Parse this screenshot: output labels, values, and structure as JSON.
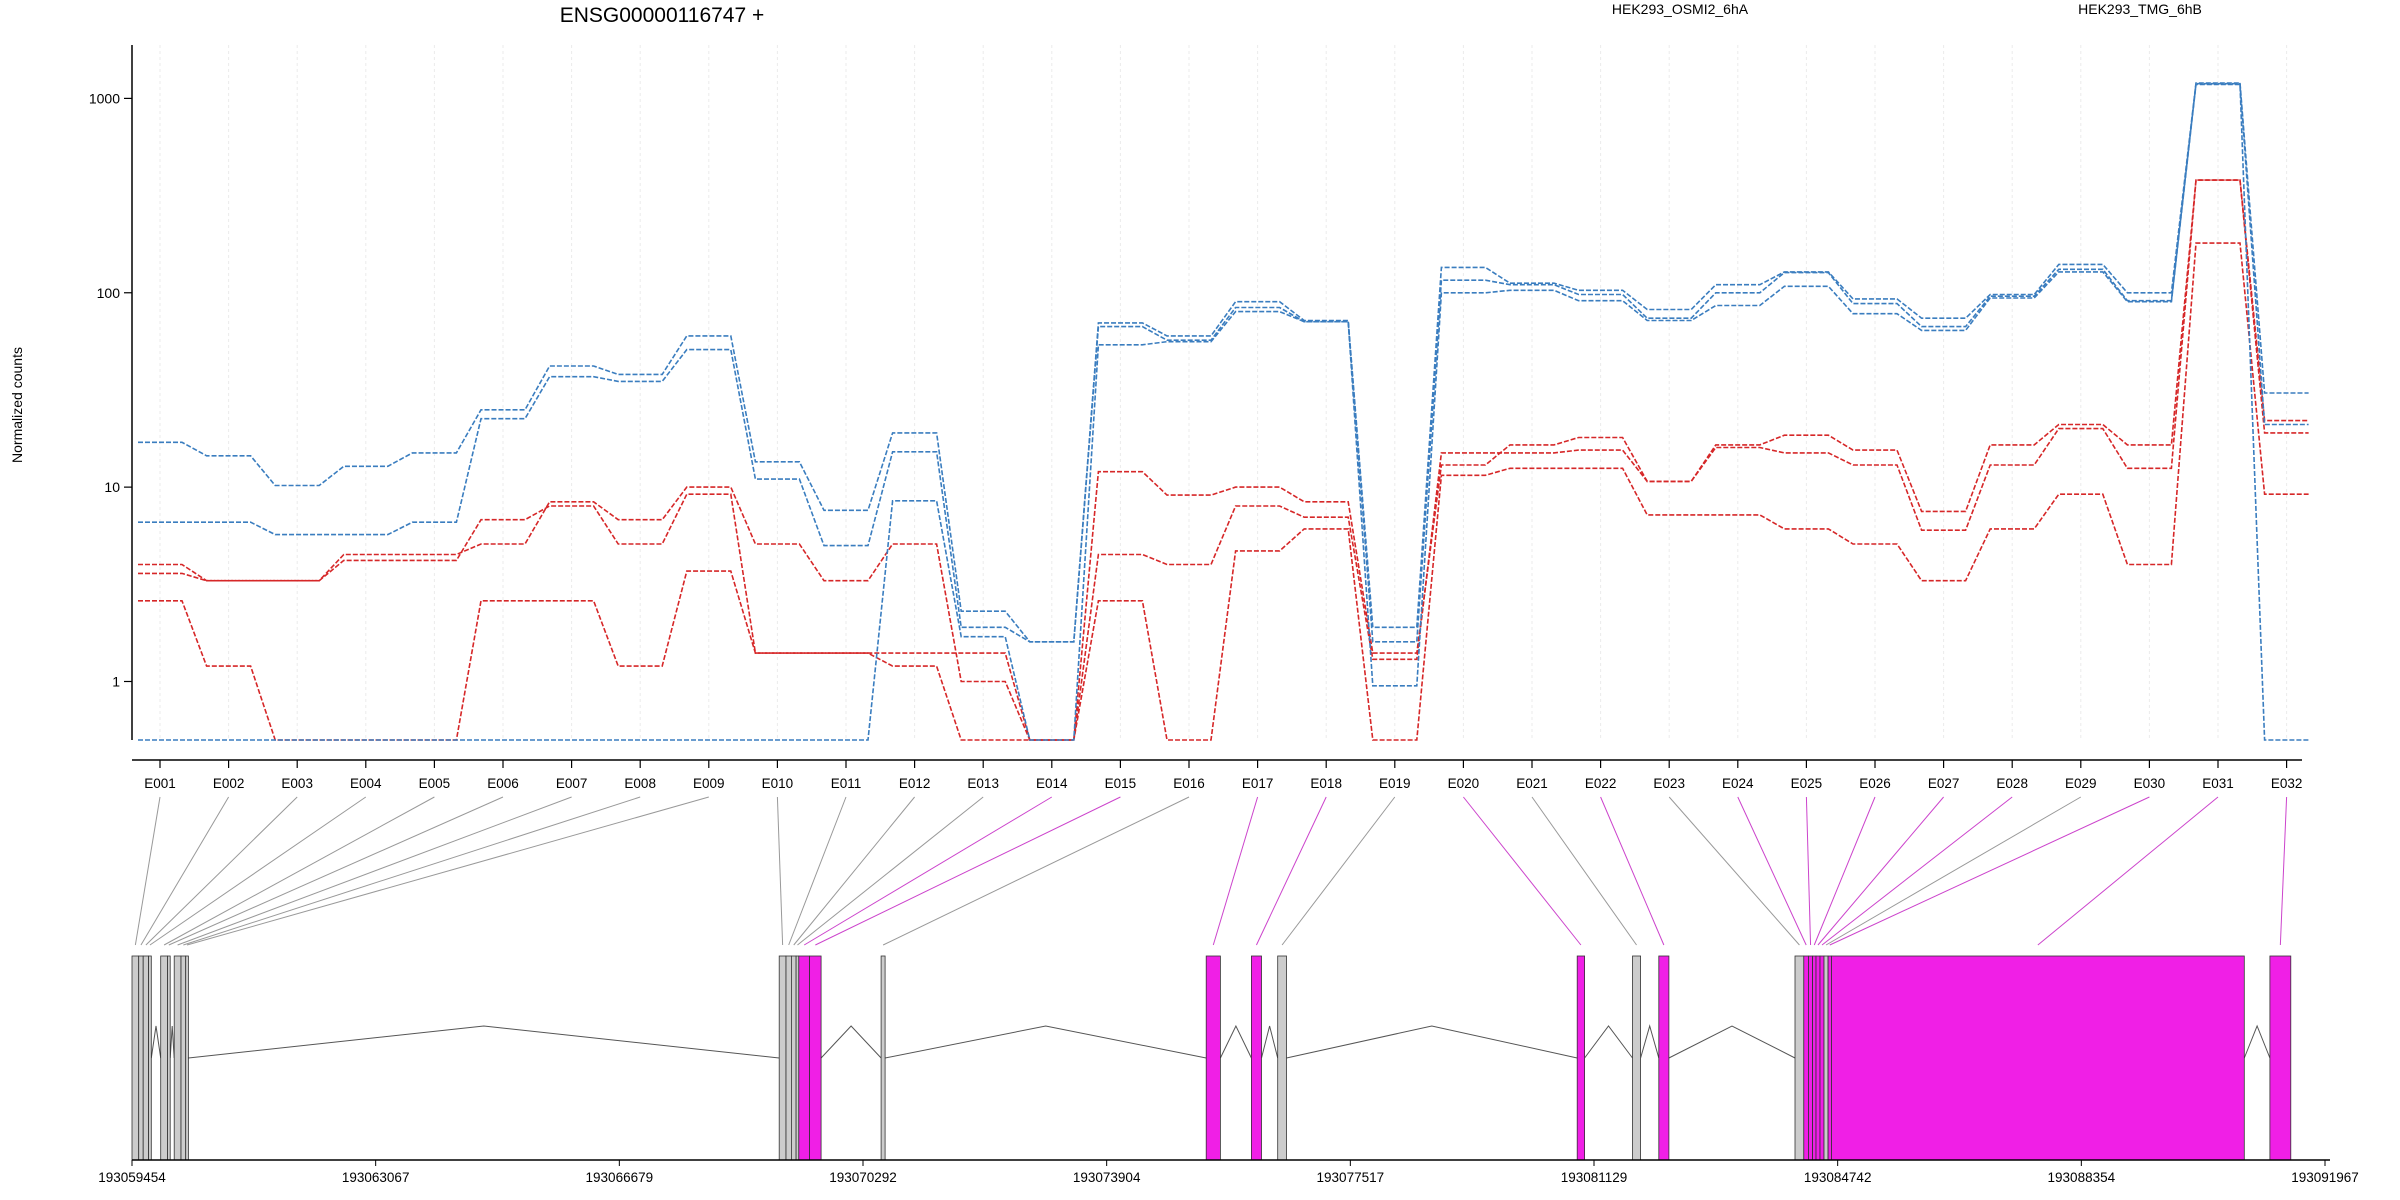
{
  "chart_data": {
    "type": "line",
    "title": "ENSG00000116747 +",
    "ylabel": "Normalized counts",
    "yscale": "log",
    "yticks": [
      "1",
      "10",
      "100",
      "1000"
    ],
    "ytick_values": [
      1,
      10,
      100,
      1000
    ],
    "ylim": [
      0.5,
      1400
    ],
    "legend": [
      {
        "label": "HEK293_OSMI2_6hA",
        "color": "#d62728"
      },
      {
        "label": "HEK293_TMG_6hB",
        "color": "#3a7dbf"
      }
    ],
    "categories": [
      "E001",
      "E002",
      "E003",
      "E004",
      "E005",
      "E006",
      "E007",
      "E008",
      "E009",
      "E010",
      "E011",
      "E012",
      "E013",
      "E014",
      "E015",
      "E016",
      "E017",
      "E018",
      "E019",
      "E020",
      "E021",
      "E022",
      "E023",
      "E024",
      "E025",
      "E026",
      "E027",
      "E028",
      "E029",
      "E030",
      "E031",
      "E032"
    ],
    "series": [
      {
        "group": "HEK293_OSMI2_6hA",
        "color": "#d62728",
        "values": [
          4.0,
          3.3,
          3.3,
          4.5,
          4.5,
          5.1,
          8.4,
          6.8,
          10.0,
          5.1,
          3.3,
          5.1,
          1.0,
          0.5,
          12.0,
          9.1,
          10.0,
          8.4,
          1.4,
          13.0,
          16.5,
          18.0,
          10.7,
          16.5,
          18.5,
          15.5,
          7.5,
          16.5,
          21.0,
          16.5,
          380,
          22.0
        ]
      },
      {
        "group": "HEK293_OSMI2_6hA",
        "color": "#d62728",
        "values": [
          3.6,
          3.3,
          3.3,
          4.2,
          4.2,
          6.8,
          8.0,
          5.1,
          9.2,
          1.4,
          1.4,
          1.4,
          1.4,
          0.5,
          4.5,
          4.0,
          8.0,
          7.0,
          1.3,
          15.0,
          15.0,
          15.5,
          10.7,
          16.0,
          15.0,
          13.0,
          6.0,
          13.0,
          20.0,
          12.5,
          380,
          19.0
        ]
      },
      {
        "group": "HEK293_OSMI2_6hA",
        "color": "#d62728",
        "values": [
          2.6,
          1.2,
          0.5,
          0.5,
          0.5,
          2.6,
          2.6,
          1.2,
          3.7,
          1.4,
          1.4,
          1.2,
          0.5,
          0.5,
          2.6,
          0.5,
          4.7,
          6.1,
          0.5,
          11.5,
          12.5,
          12.5,
          7.2,
          7.2,
          6.1,
          5.1,
          3.3,
          6.1,
          9.2,
          4.0,
          180,
          9.2
        ]
      },
      {
        "group": "HEK293_TMG_6hB",
        "color": "#3a7dbf",
        "values": [
          17.0,
          14.5,
          10.2,
          12.8,
          15.0,
          25.0,
          42.0,
          38.0,
          60.0,
          13.5,
          7.6,
          19.0,
          2.3,
          1.6,
          70.0,
          60.0,
          90.0,
          72.0,
          1.9,
          135,
          112,
          103,
          82,
          110,
          128,
          93,
          74,
          98,
          140,
          100,
          1200,
          30.5
        ]
      },
      {
        "group": "HEK293_TMG_6hB",
        "color": "#3a7dbf",
        "values": [
          6.6,
          6.6,
          5.7,
          5.7,
          6.6,
          22.5,
          37.0,
          35.0,
          51.0,
          11.0,
          5.0,
          15.2,
          1.9,
          1.6,
          67.0,
          57.0,
          84.0,
          71.0,
          1.6,
          116,
          110,
          98,
          74,
          100,
          127,
          88,
          67,
          96,
          132,
          91,
          1190,
          21.0
        ]
      },
      {
        "group": "HEK293_TMG_6hB",
        "color": "#3a7dbf",
        "values": [
          0.5,
          0.5,
          0.5,
          0.5,
          0.5,
          0.5,
          0.5,
          0.5,
          0.5,
          0.5,
          0.5,
          8.5,
          1.7,
          0.5,
          54.0,
          56.0,
          80.0,
          71.0,
          0.95,
          100,
          103,
          91,
          72,
          86,
          108,
          78,
          64,
          94,
          128,
          90,
          1180,
          0.5
        ]
      }
    ],
    "coordinate_axis": {
      "tick_labels": [
        "193059454",
        "193063067",
        "193066679",
        "193070292",
        "193073904",
        "193077517",
        "193081129",
        "193084742",
        "193088354",
        "193091967"
      ]
    },
    "exon_colors": {
      "constitutive": "#cccccc",
      "significant": "#f01fe6"
    },
    "exons": [
      {
        "id": "E001",
        "start": 193059454,
        "end": 193059554,
        "highlight": false,
        "link": "#999999"
      },
      {
        "id": "E002",
        "start": 193059554,
        "end": 193059620,
        "highlight": false,
        "link": "#999999"
      },
      {
        "id": "E003",
        "start": 193059620,
        "end": 193059700,
        "highlight": false,
        "link": "#999999"
      },
      {
        "id": "E004",
        "start": 193059700,
        "end": 193059740,
        "highlight": false,
        "link": "#999999"
      },
      {
        "id": "E005",
        "start": 193059880,
        "end": 193059980,
        "highlight": false,
        "link": "#999999"
      },
      {
        "id": "E006",
        "start": 193059980,
        "end": 193060020,
        "highlight": false,
        "link": "#999999"
      },
      {
        "id": "E007",
        "start": 193060080,
        "end": 193060180,
        "highlight": false,
        "link": "#999999"
      },
      {
        "id": "E008",
        "start": 193060180,
        "end": 193060250,
        "highlight": false,
        "link": "#999999"
      },
      {
        "id": "E009",
        "start": 193060250,
        "end": 193060290,
        "highlight": false,
        "link": "#999999"
      },
      {
        "id": "E010",
        "start": 193069050,
        "end": 193069150,
        "highlight": false,
        "link": "#999999"
      },
      {
        "id": "E011",
        "start": 193069150,
        "end": 193069230,
        "highlight": false,
        "link": "#999999"
      },
      {
        "id": "E012",
        "start": 193069230,
        "end": 193069300,
        "highlight": false,
        "link": "#999999"
      },
      {
        "id": "E013",
        "start": 193069300,
        "end": 193069340,
        "highlight": false,
        "link": "#999999"
      },
      {
        "id": "E014",
        "start": 193069340,
        "end": 193069500,
        "highlight": true,
        "link": "#cc44cc"
      },
      {
        "id": "E015",
        "start": 193069500,
        "end": 193069670,
        "highlight": true,
        "link": "#cc44cc"
      },
      {
        "id": "E016",
        "start": 193070560,
        "end": 193070620,
        "highlight": false,
        "link": "#999999"
      },
      {
        "id": "E017",
        "start": 193075380,
        "end": 193075590,
        "highlight": true,
        "link": "#cc44cc"
      },
      {
        "id": "E018",
        "start": 193076050,
        "end": 193076200,
        "highlight": true,
        "link": "#cc44cc"
      },
      {
        "id": "E019",
        "start": 193076440,
        "end": 193076570,
        "highlight": false,
        "link": "#999999"
      },
      {
        "id": "E020",
        "start": 193080880,
        "end": 193080990,
        "highlight": true,
        "link": "#cc44cc"
      },
      {
        "id": "E021",
        "start": 193081700,
        "end": 193081820,
        "highlight": false,
        "link": "#999999"
      },
      {
        "id": "E022",
        "start": 193082090,
        "end": 193082240,
        "highlight": true,
        "link": "#cc44cc"
      },
      {
        "id": "E023",
        "start": 193084110,
        "end": 193084240,
        "highlight": false,
        "link": "#999999"
      },
      {
        "id": "E024",
        "start": 193084240,
        "end": 193084310,
        "highlight": true,
        "link": "#cc44cc"
      },
      {
        "id": "E025",
        "start": 193084310,
        "end": 193084370,
        "highlight": true,
        "link": "#cc44cc"
      },
      {
        "id": "E026",
        "start": 193084370,
        "end": 193084420,
        "highlight": true,
        "link": "#cc44cc"
      },
      {
        "id": "E027",
        "start": 193084420,
        "end": 193084480,
        "highlight": true,
        "link": "#cc44cc"
      },
      {
        "id": "E028",
        "start": 193084480,
        "end": 193084540,
        "highlight": true,
        "link": "#cc44cc"
      },
      {
        "id": "E029",
        "start": 193084540,
        "end": 193084600,
        "highlight": false,
        "link": "#999999"
      },
      {
        "id": "E030",
        "start": 193084600,
        "end": 193084650,
        "highlight": true,
        "link": "#cc44cc"
      },
      {
        "id": "E031",
        "start": 193084650,
        "end": 193090770,
        "highlight": true,
        "link": "#cc44cc"
      },
      {
        "id": "E032",
        "start": 193091150,
        "end": 193091460,
        "highlight": true,
        "link": "#cc44cc"
      }
    ]
  }
}
